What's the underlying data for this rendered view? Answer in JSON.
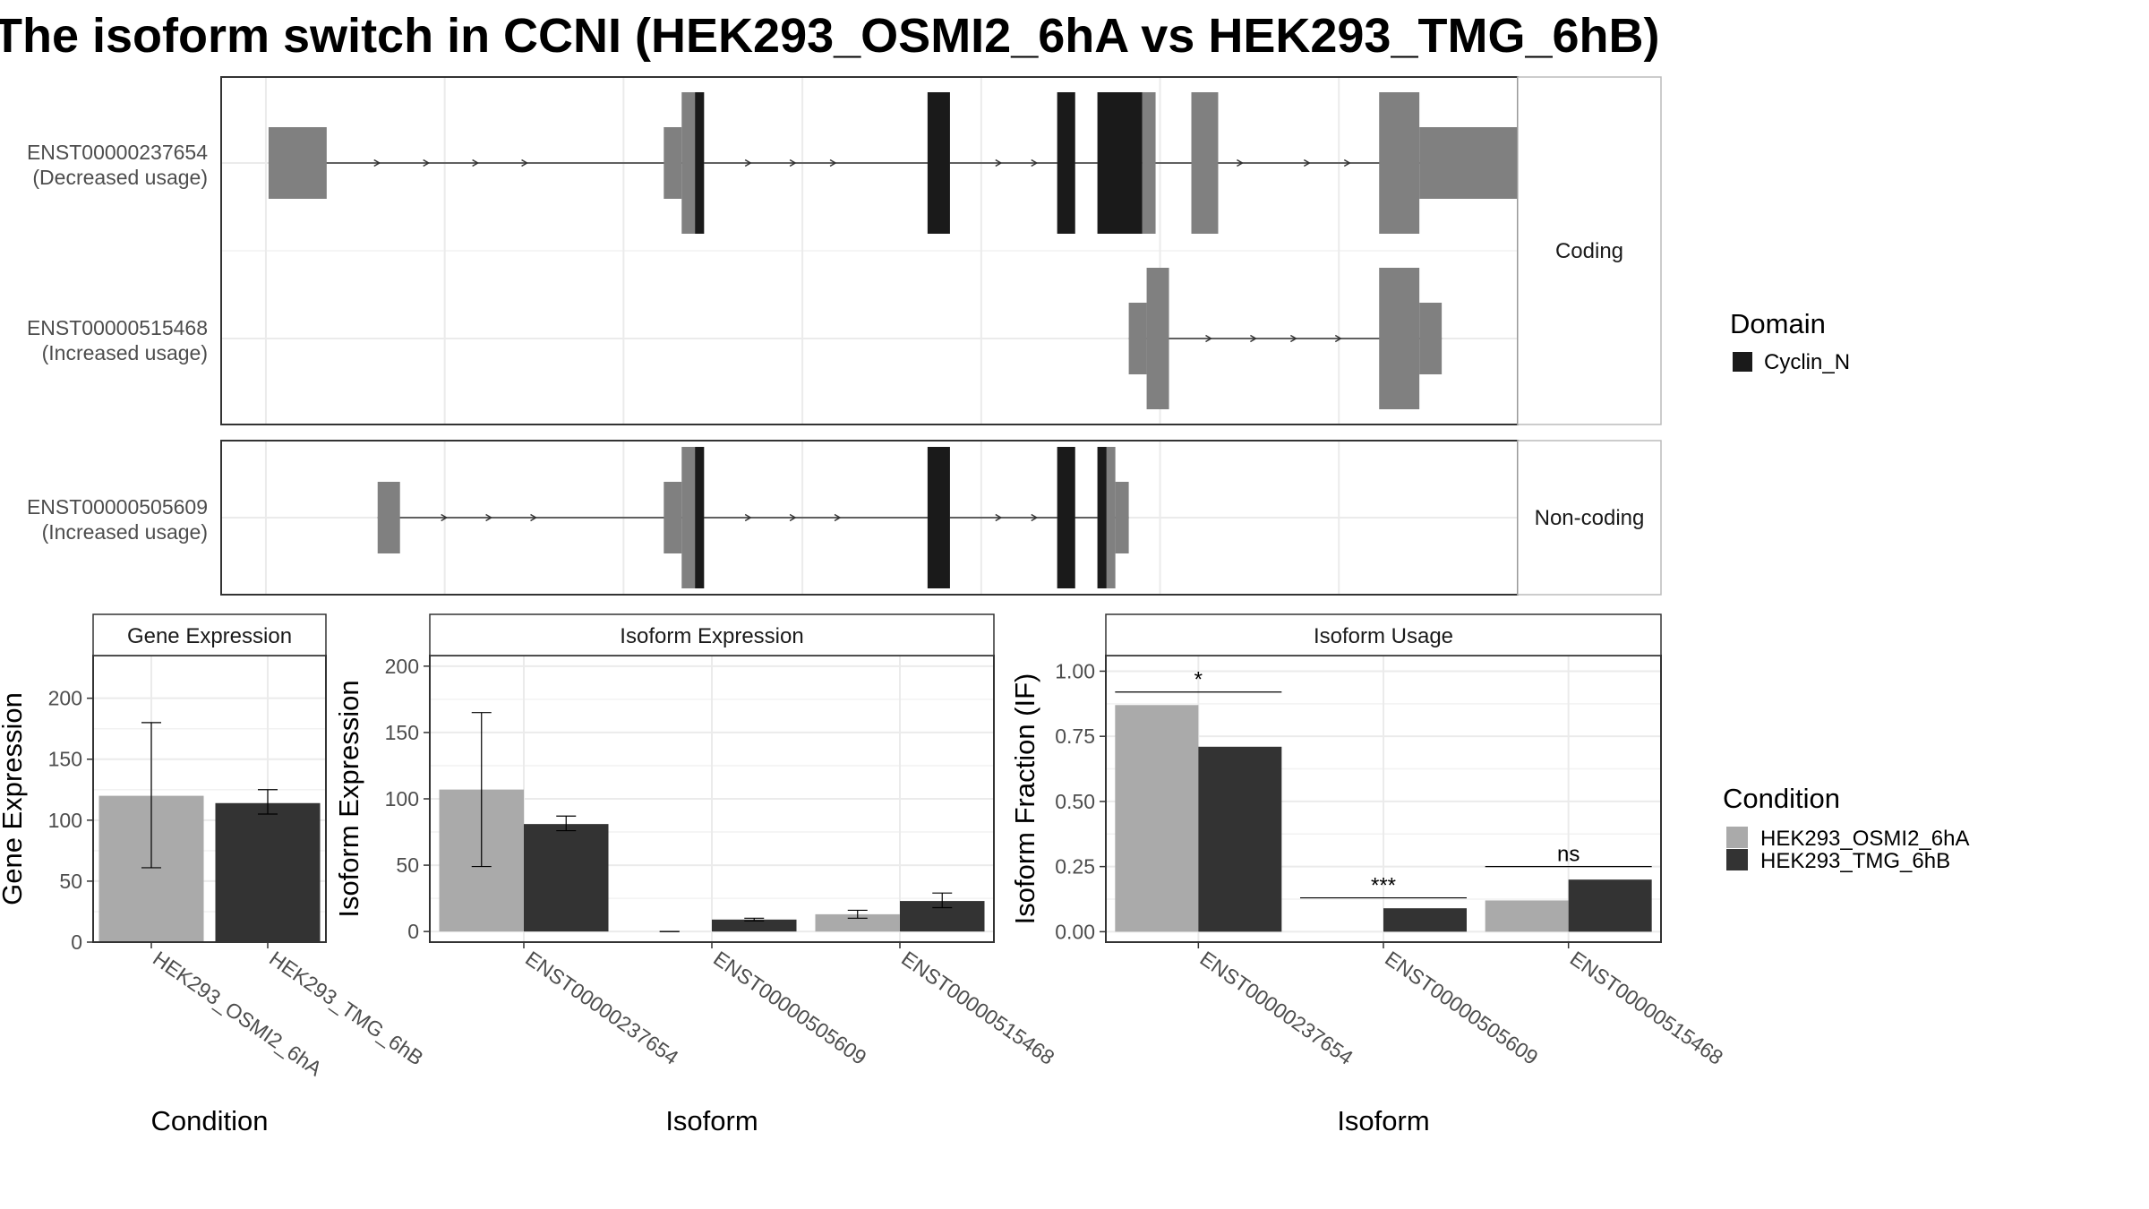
{
  "title": "The isoform switch in CCNI (HEK293_OSMI2_6hA vs HEK293_TMG_6hB)",
  "colors": {
    "cond_a": "#AAAAAA",
    "cond_b": "#333333",
    "exon": "#808080",
    "domain": "#1A1A1A",
    "grid": "#EBEBEB",
    "strip_bg": "#FFFFFF",
    "text": "#000000",
    "axis_text": "#4D4D4D"
  },
  "structure": {
    "panels": [
      {
        "label": "Coding",
        "isoforms": [
          {
            "id": "ENST00000237654",
            "usage": "(Decreased usage)",
            "exons": [
              [
                0.3,
                6.8,
                "u"
              ],
              [
                44.5,
                46.5,
                "u"
              ],
              [
                46.5,
                49.0,
                "c"
              ],
              [
                74.0,
                76.5,
                "c"
              ],
              [
                88.5,
                90.5,
                "c"
              ],
              [
                93.0,
                98.0,
                "c"
              ],
              [
                98.0,
                99.5,
                "c"
              ],
              [
                103.5,
                106.5,
                "c"
              ],
              [
                124.5,
                129.0,
                "c"
              ],
              [
                129.0,
                142.0,
                "u"
              ]
            ],
            "domains": [
              [
                48.0,
                49.0
              ],
              [
                74.0,
                76.5
              ],
              [
                88.5,
                90.5
              ],
              [
                93.0,
                98.0
              ]
            ],
            "arrows": [
              12.5,
              18.0,
              23.5,
              29.0,
              54.0,
              59.0,
              63.5,
              82.0,
              86.0,
              109.0,
              116.5,
              121.0
            ]
          },
          {
            "id": "ENST00000515468",
            "usage": "(Increased usage)",
            "exons": [
              [
                96.5,
                98.5,
                "u"
              ],
              [
                98.5,
                101.0,
                "c"
              ],
              [
                124.5,
                129.0,
                "c"
              ],
              [
                129.0,
                131.5,
                "u"
              ]
            ],
            "domains": [],
            "arrows": [
              105.5,
              110.5,
              115.0,
              120.0
            ]
          }
        ]
      },
      {
        "label": "Non-coding",
        "isoforms": [
          {
            "id": "ENST00000505609",
            "usage": "(Increased usage)",
            "exons": [
              [
                12.5,
                15.0,
                "u"
              ],
              [
                44.5,
                46.5,
                "u"
              ],
              [
                46.5,
                49.0,
                "c"
              ],
              [
                74.0,
                76.5,
                "c"
              ],
              [
                88.5,
                90.5,
                "c"
              ],
              [
                93.0,
                95.0,
                "c"
              ],
              [
                95.0,
                96.5,
                "u"
              ]
            ],
            "domains": [
              [
                48.0,
                49.0
              ],
              [
                74.0,
                76.5
              ],
              [
                88.5,
                90.5
              ],
              [
                93.0,
                94.0
              ]
            ],
            "arrows": [
              20.0,
              25.0,
              30.0,
              54.0,
              59.0,
              64.0,
              82.0,
              86.0
            ]
          }
        ]
      }
    ],
    "x_range": [
      -5,
      140
    ],
    "legend": {
      "title": "Domain",
      "items": [
        "Cyclin_N"
      ]
    }
  },
  "chart_data": [
    {
      "type": "bar",
      "title": "Gene Expression",
      "xlabel": "Condition",
      "ylabel": "Gene Expression",
      "categories": [
        "HEK293_OSMI2_6hA",
        "HEK293_TMG_6hB"
      ],
      "values": [
        120,
        114
      ],
      "errors": [
        [
          61,
          180
        ],
        [
          105,
          125
        ]
      ],
      "ylim": [
        0,
        235
      ],
      "yticks": [
        0,
        50,
        100,
        150,
        200
      ]
    },
    {
      "type": "bar",
      "title": "Isoform Expression",
      "xlabel": "Isoform",
      "ylabel": "Isoform Expression",
      "categories": [
        "ENST00000237654",
        "ENST00000505609",
        "ENST00000515468"
      ],
      "series": [
        {
          "name": "HEK293_OSMI2_6hA",
          "values": [
            107,
            0,
            13
          ],
          "errors": [
            [
              49,
              165
            ],
            [
              0,
              0
            ],
            [
              10,
              16
            ]
          ]
        },
        {
          "name": "HEK293_TMG_6hB",
          "values": [
            81,
            9,
            23
          ],
          "errors": [
            [
              76,
              87
            ],
            [
              8,
              10
            ],
            [
              18,
              29
            ]
          ]
        }
      ],
      "ylim": [
        -8,
        208
      ],
      "yticks": [
        0,
        50,
        100,
        150,
        200
      ]
    },
    {
      "type": "bar",
      "title": "Isoform Usage",
      "xlabel": "Isoform",
      "ylabel": "Isoform Fraction (IF)",
      "categories": [
        "ENST00000237654",
        "ENST00000505609",
        "ENST00000515468"
      ],
      "series": [
        {
          "name": "HEK293_OSMI2_6hA",
          "values": [
            0.87,
            0.0,
            0.12
          ]
        },
        {
          "name": "HEK293_TMG_6hB",
          "values": [
            0.71,
            0.09,
            0.2
          ]
        }
      ],
      "significance": [
        "*",
        "***",
        "ns"
      ],
      "sig_levels": [
        0.92,
        0.13,
        0.25
      ],
      "ylim": [
        -0.04,
        1.06
      ],
      "yticks": [
        0.0,
        0.25,
        0.5,
        0.75,
        1.0
      ],
      "ytick_labels": [
        "0.00",
        "0.25",
        "0.50",
        "0.75",
        "1.00"
      ]
    }
  ],
  "condition_legend": {
    "title": "Condition",
    "items": [
      "HEK293_OSMI2_6hA",
      "HEK293_TMG_6hB"
    ]
  }
}
